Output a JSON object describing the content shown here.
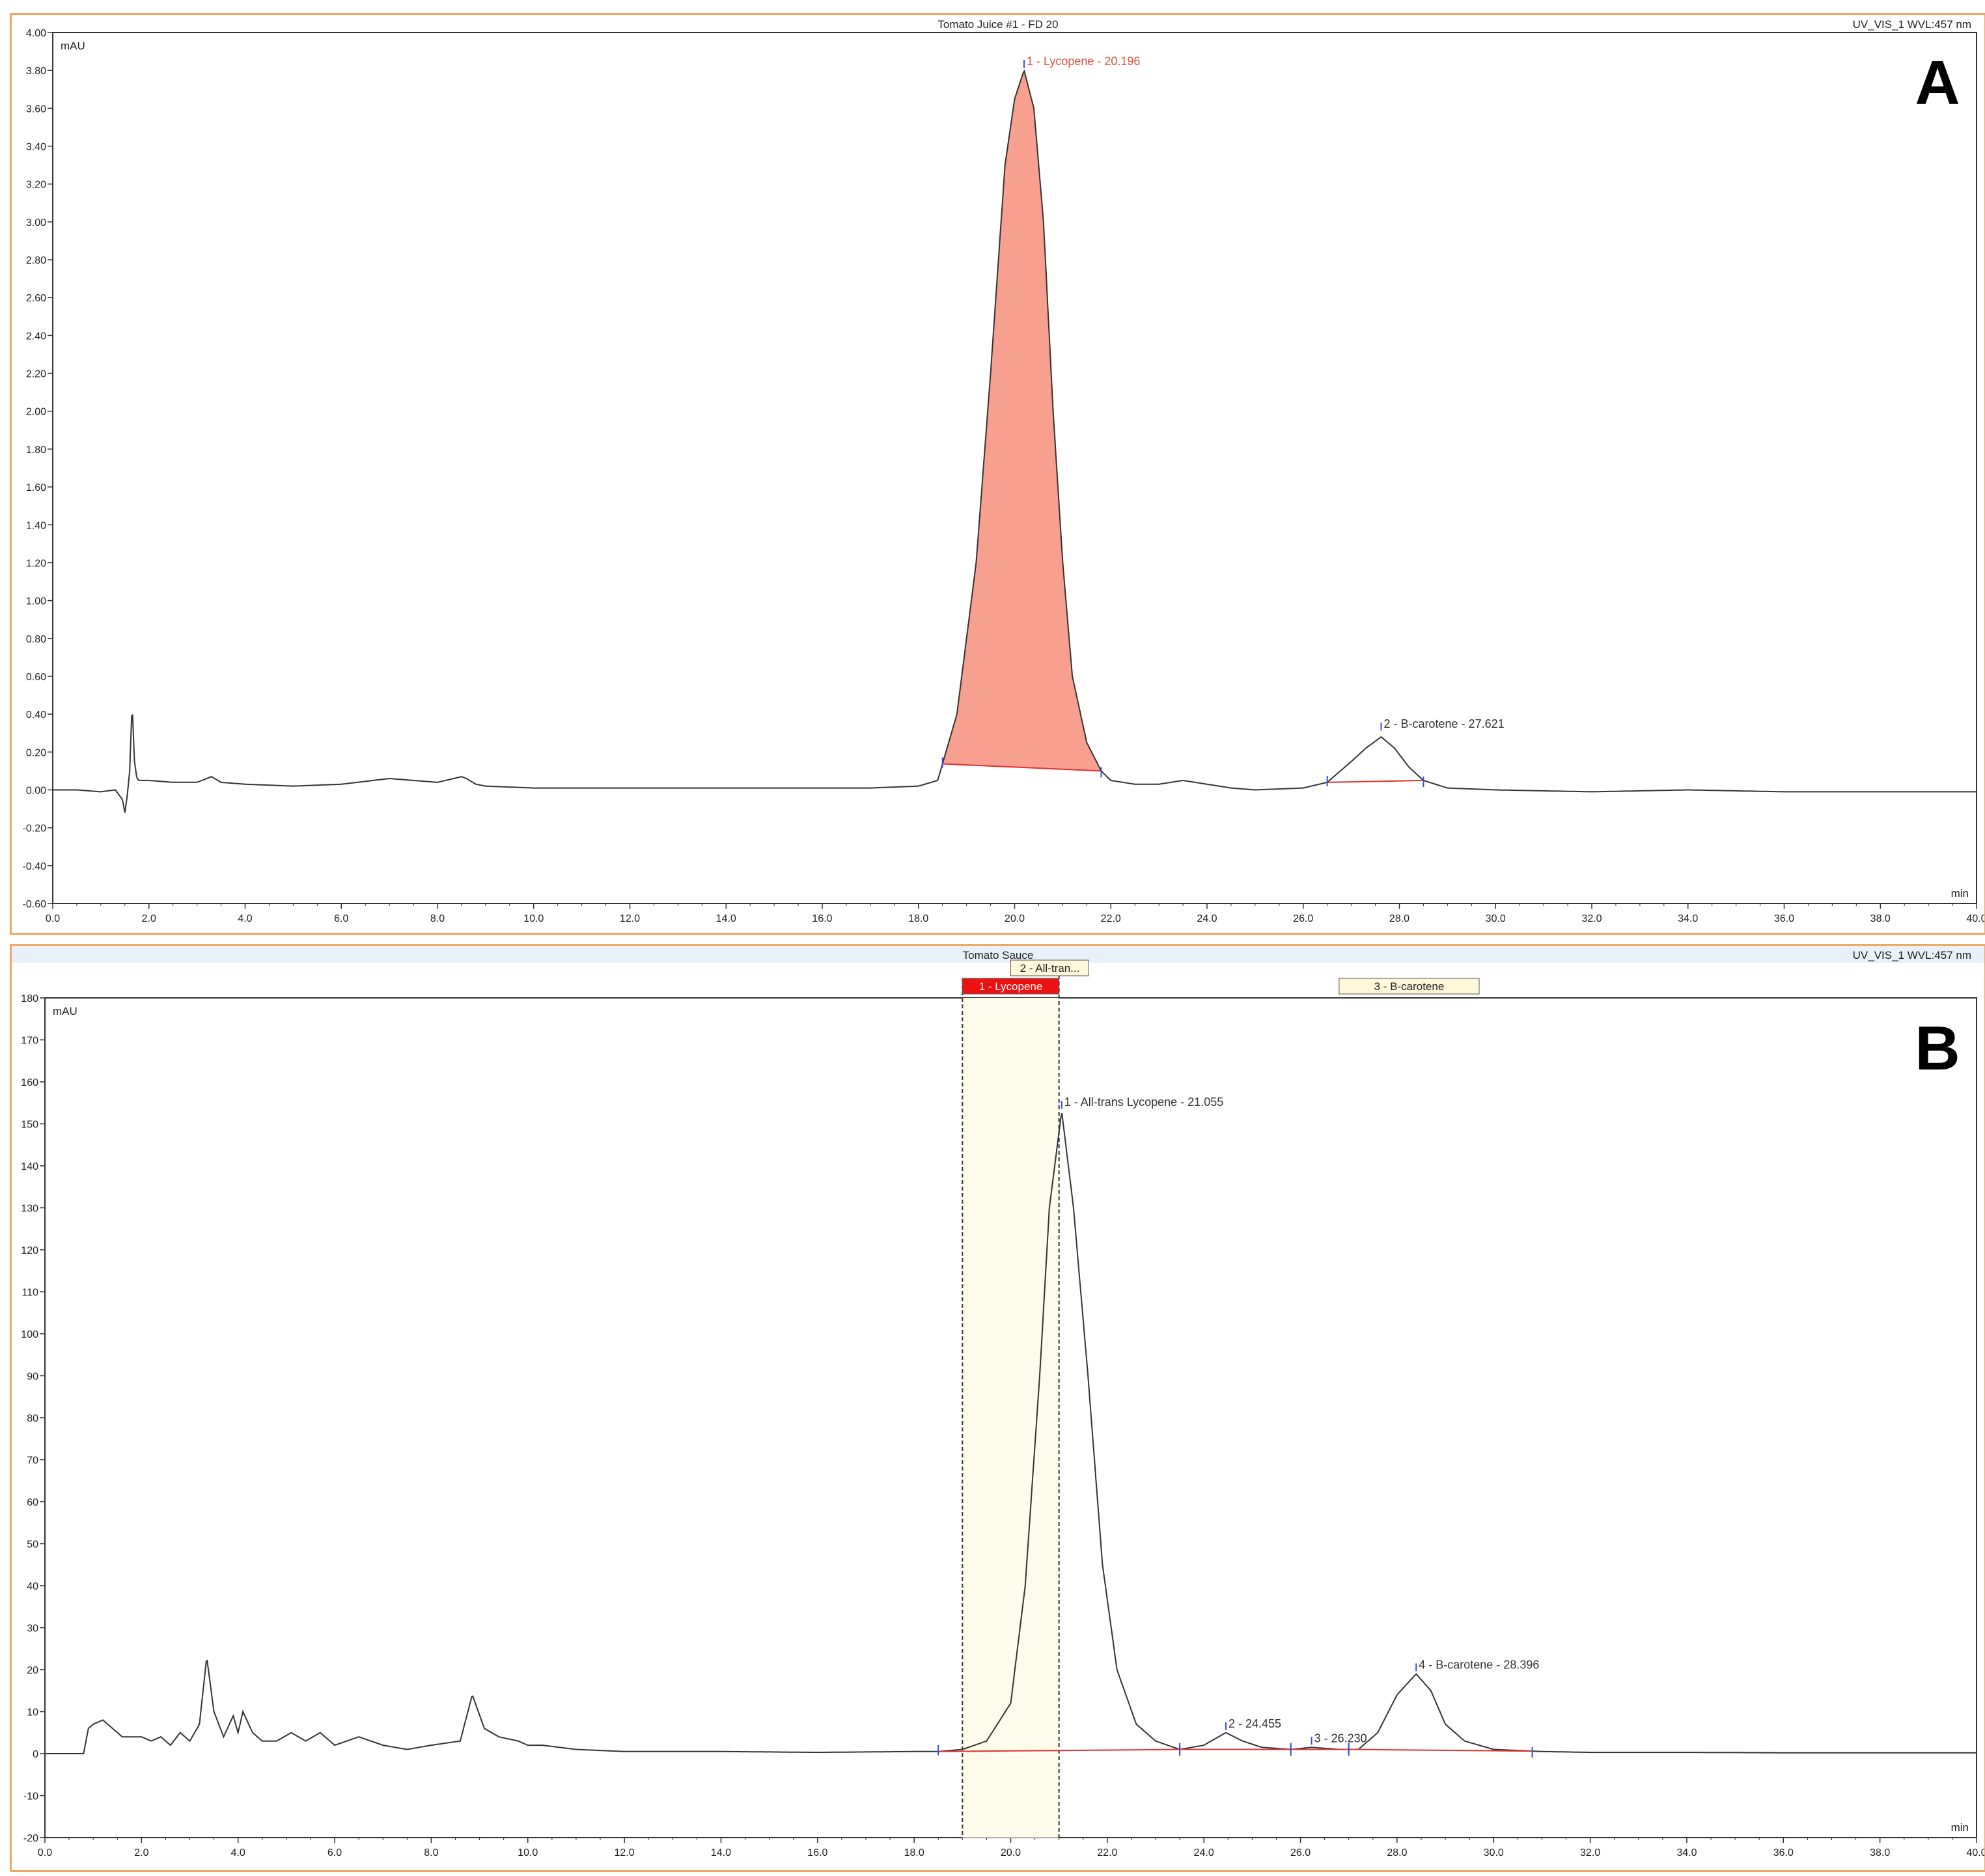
{
  "chart_data": [
    {
      "type": "line",
      "title": "Tomato Juice #1 - FD 20",
      "channel": "UV_VIS_1 WVL:457 nm",
      "ylabel": "mAU",
      "xlabel": "min",
      "xlim": [
        0,
        40
      ],
      "ylim": [
        -0.6,
        4.0
      ],
      "x_ticks": [
        "0.0",
        "2.0",
        "4.0",
        "6.0",
        "8.0",
        "10.0",
        "12.0",
        "14.0",
        "16.0",
        "18.0",
        "20.0",
        "22.0",
        "24.0",
        "26.0",
        "28.0",
        "30.0",
        "32.0",
        "34.0",
        "36.0",
        "38.0",
        "40.0"
      ],
      "y_ticks": [
        "-0.60",
        "-0.40",
        "-0.20",
        "0.00",
        "0.20",
        "0.40",
        "0.60",
        "0.80",
        "1.00",
        "1.20",
        "1.40",
        "1.60",
        "1.80",
        "2.00",
        "2.20",
        "2.40",
        "2.60",
        "2.80",
        "3.00",
        "3.20",
        "3.40",
        "3.60",
        "3.80",
        "4.00"
      ],
      "panel_letter": "A",
      "series": [
        {
          "x": [
            0.0,
            0.5,
            1.0,
            1.3,
            1.45,
            1.5,
            1.55,
            1.6,
            1.65,
            1.7,
            1.75,
            1.8,
            2.0,
            2.5,
            3.0,
            3.3,
            3.5,
            4.0,
            5.0,
            6.0,
            7.0,
            7.5,
            8.0,
            8.5,
            8.6,
            8.8,
            9.0,
            10.0,
            12.0,
            14.0,
            16.0,
            17.0,
            18.0,
            18.4,
            18.8,
            19.2,
            19.5,
            19.8,
            20.0,
            20.196,
            20.4,
            20.6,
            20.8,
            21.0,
            21.2,
            21.5,
            21.8,
            22.0,
            22.5,
            23.0,
            23.5,
            24.0,
            24.5,
            25.0,
            26.0,
            26.5,
            27.0,
            27.3,
            27.621,
            27.9,
            28.2,
            28.5,
            29.0,
            30.0,
            32.0,
            34.0,
            36.0,
            38.0,
            40.0
          ],
          "y": [
            0.0,
            0.0,
            -0.01,
            0.0,
            -0.05,
            -0.12,
            -0.03,
            0.1,
            0.46,
            0.15,
            0.06,
            0.05,
            0.05,
            0.04,
            0.04,
            0.07,
            0.04,
            0.03,
            0.02,
            0.03,
            0.06,
            0.05,
            0.04,
            0.07,
            0.06,
            0.03,
            0.02,
            0.01,
            0.01,
            0.01,
            0.01,
            0.01,
            0.02,
            0.05,
            0.4,
            1.2,
            2.2,
            3.3,
            3.65,
            3.8,
            3.6,
            3.0,
            2.0,
            1.2,
            0.6,
            0.25,
            0.1,
            0.05,
            0.03,
            0.03,
            0.05,
            0.03,
            0.01,
            0.0,
            0.01,
            0.04,
            0.15,
            0.22,
            0.28,
            0.22,
            0.12,
            0.05,
            0.01,
            0.0,
            -0.01,
            0.0,
            -0.01,
            -0.01,
            -0.01
          ]
        }
      ],
      "peaks": [
        {
          "label": "1 - Lycopene - 20.196",
          "rt": 20.196,
          "height": 3.8,
          "start": 18.5,
          "end": 21.8,
          "color": "#e05040",
          "fill": "#f8a090"
        },
        {
          "label": "2 - B-carotene - 27.621",
          "rt": 27.621,
          "height": 0.3,
          "start": 26.5,
          "end": 28.5,
          "color": "#333333"
        }
      ]
    },
    {
      "type": "line",
      "title": "Tomato Sauce",
      "channel": "UV_VIS_1 WVL:457 nm",
      "ylabel": "mAU",
      "xlabel": "min",
      "xlim": [
        0,
        40
      ],
      "ylim": [
        -20,
        180
      ],
      "x_ticks": [
        "0.0",
        "2.0",
        "4.0",
        "6.0",
        "8.0",
        "10.0",
        "12.0",
        "14.0",
        "16.0",
        "18.0",
        "20.0",
        "22.0",
        "24.0",
        "26.0",
        "28.0",
        "30.0",
        "32.0",
        "34.0",
        "36.0",
        "38.0",
        "40.0"
      ],
      "y_ticks": [
        "-20",
        "-10",
        "0",
        "10",
        "20",
        "30",
        "40",
        "50",
        "60",
        "70",
        "80",
        "90",
        "100",
        "110",
        "120",
        "130",
        "140",
        "150",
        "160",
        "170",
        "180"
      ],
      "panel_letter": "B",
      "window_labels": [
        "2 - All-tran...",
        "1 - Lycopene",
        "3 - B-carotene"
      ],
      "series": [
        {
          "x": [
            0.0,
            0.5,
            0.8,
            0.9,
            1.0,
            1.2,
            1.4,
            1.6,
            2.0,
            2.2,
            2.4,
            2.6,
            2.8,
            3.0,
            3.2,
            3.35,
            3.5,
            3.7,
            3.9,
            4.0,
            4.1,
            4.3,
            4.5,
            4.8,
            5.1,
            5.4,
            5.7,
            6.0,
            6.5,
            7.0,
            7.5,
            8.0,
            8.6,
            8.85,
            9.1,
            9.4,
            9.8,
            10.0,
            10.3,
            11.0,
            12.0,
            14.0,
            16.0,
            18.0,
            18.5,
            19.0,
            19.5,
            20.0,
            20.3,
            20.6,
            20.8,
            21.055,
            21.3,
            21.6,
            21.9,
            22.2,
            22.6,
            23.0,
            23.5,
            24.0,
            24.455,
            24.8,
            25.2,
            25.8,
            26.23,
            26.8,
            27.2,
            27.6,
            28.0,
            28.396,
            28.7,
            29.0,
            29.4,
            30.0,
            31.0,
            32.0,
            34.0,
            36.0,
            38.0,
            40.0
          ],
          "y": [
            0,
            0,
            0,
            6,
            7,
            8,
            6,
            4,
            4,
            3,
            4,
            2,
            5,
            3,
            7,
            23,
            10,
            4,
            9,
            5,
            10,
            5,
            3,
            3,
            5,
            3,
            5,
            2,
            4,
            2,
            1,
            2,
            3,
            14,
            6,
            4,
            3,
            2,
            2,
            1,
            0.5,
            0.5,
            0.3,
            0.5,
            0.5,
            1,
            3,
            12,
            40,
            90,
            130,
            153,
            130,
            90,
            45,
            20,
            7,
            3,
            1,
            2,
            5,
            3,
            1.5,
            1,
            1.5,
            1,
            1,
            5,
            14,
            19,
            15,
            7,
            3,
            1,
            0.5,
            0.3,
            0.3,
            0.2,
            0.2,
            0.2
          ]
        }
      ],
      "window": {
        "start": 19.0,
        "end": 21.0
      },
      "peaks": [
        {
          "label": "1 - All-trans Lycopene - 21.055",
          "rt": 21.055,
          "height": 153,
          "start": 18.5,
          "end": 23.5,
          "color": "#333333"
        },
        {
          "label": "2 - 24.455",
          "rt": 24.455,
          "height": 5,
          "start": 23.5,
          "end": 25.8,
          "color": "#333333"
        },
        {
          "label": "3 - 26.230",
          "rt": 26.23,
          "height": 1.5,
          "start": 25.8,
          "end": 27.0,
          "color": "#333333"
        },
        {
          "label": "4 - B-carotene - 28.396",
          "rt": 28.396,
          "height": 19,
          "start": 27.0,
          "end": 30.8,
          "color": "#333333"
        }
      ]
    }
  ]
}
